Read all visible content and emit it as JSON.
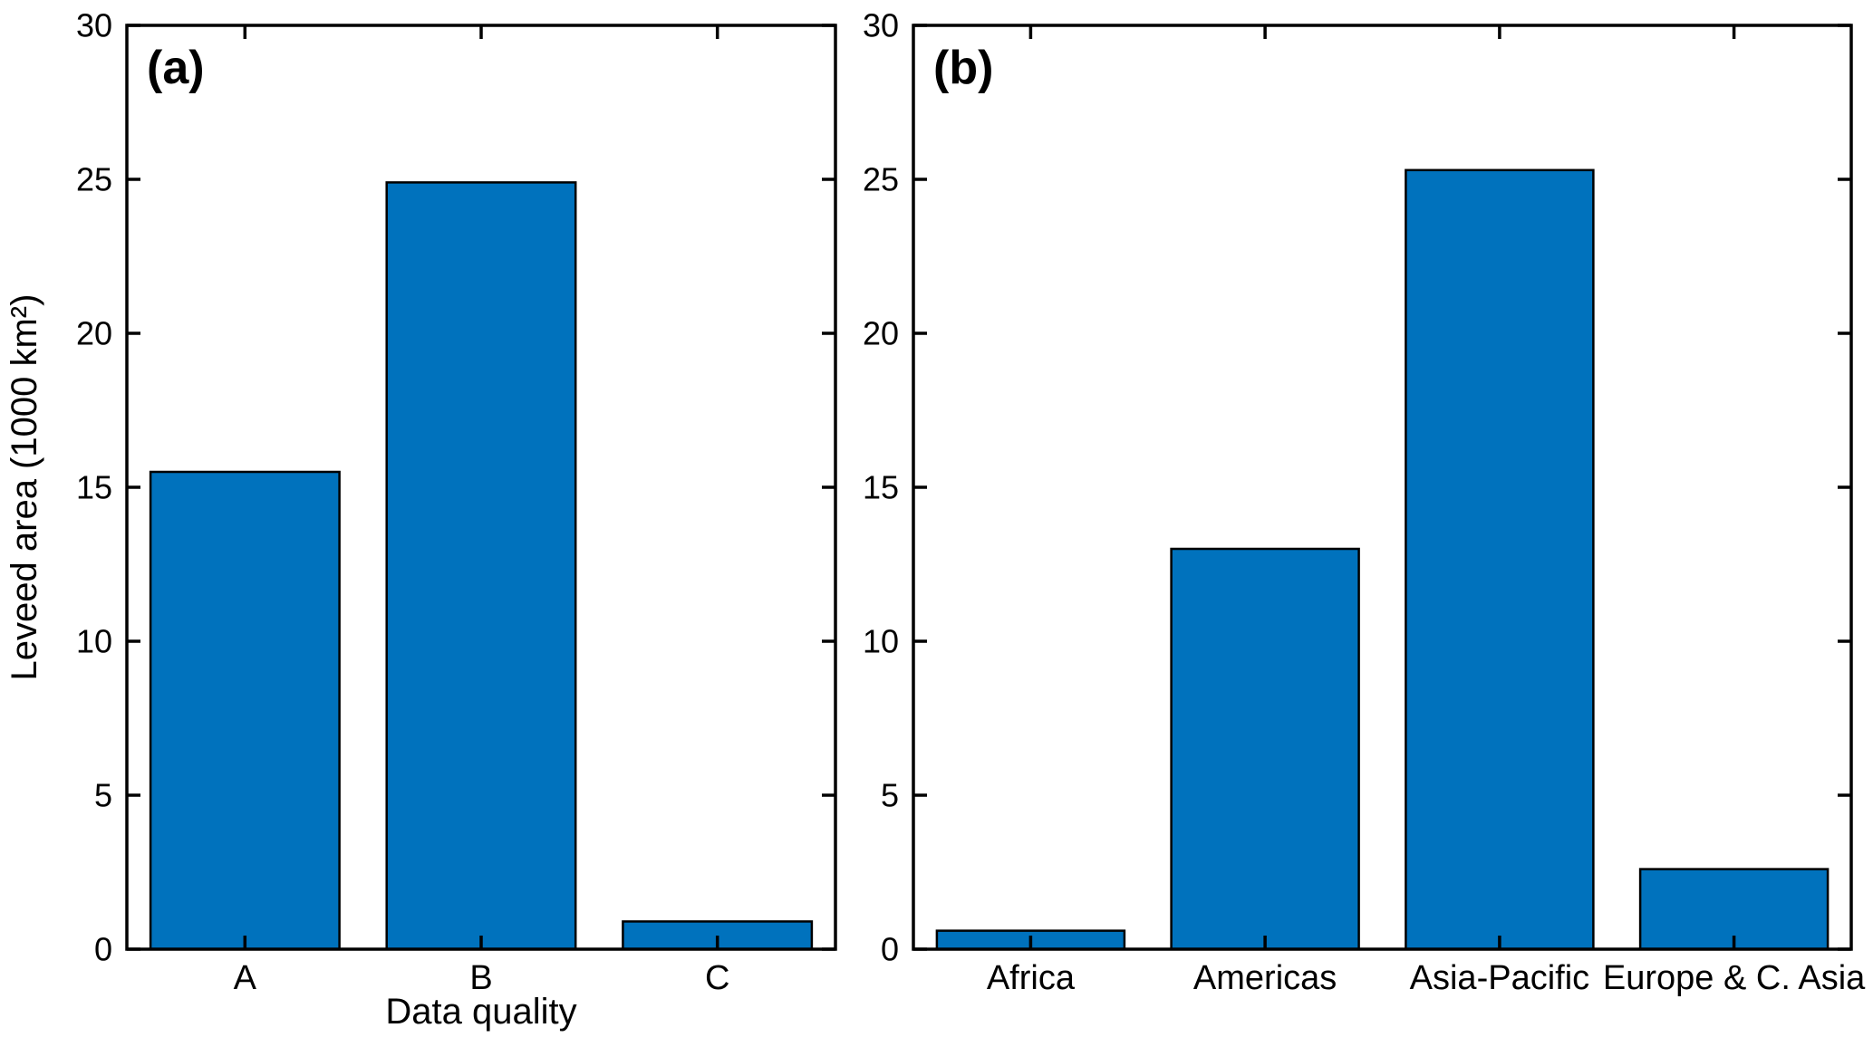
{
  "figure": {
    "background": "#ffffff",
    "bar_fill": "#0072BD",
    "bar_edge": "#000000",
    "axis_color": "#000000",
    "text_color": "#000000"
  },
  "chart_data": [
    {
      "type": "bar",
      "panel_label": "(a)",
      "categories": [
        "A",
        "B",
        "C"
      ],
      "values": [
        15.5,
        24.9,
        0.9
      ],
      "title": "",
      "xlabel": "Data quality",
      "ylabel": "Leveed area (1000 km²)",
      "ylim": [
        0,
        30
      ],
      "yticks": [
        0,
        5,
        10,
        15,
        20,
        25,
        30
      ],
      "bar_width_frac": 0.8,
      "grid": false,
      "box": true,
      "tick_direction": "in",
      "legend": "none"
    },
    {
      "type": "bar",
      "panel_label": "(b)",
      "categories": [
        "Africa",
        "Americas",
        "Asia-Pacific",
        "Europe & C. Asia"
      ],
      "values": [
        0.6,
        13.0,
        25.3,
        2.6
      ],
      "title": "",
      "xlabel": "",
      "ylabel": "",
      "ylim": [
        0,
        30
      ],
      "yticks": [
        0,
        5,
        10,
        15,
        20,
        25,
        30
      ],
      "bar_width_frac": 0.8,
      "grid": false,
      "box": true,
      "tick_direction": "in",
      "legend": "none"
    }
  ]
}
